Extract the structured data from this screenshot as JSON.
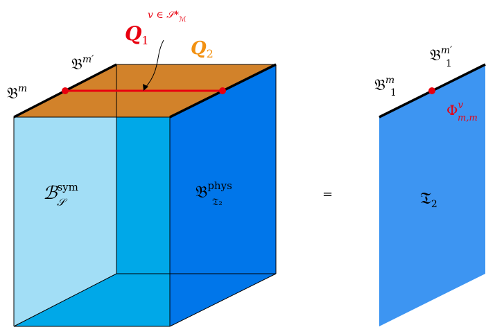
{
  "figure": {
    "left_panel": {
      "label_Bm": "𝔅",
      "label_Bm_sup": "m",
      "label_Bmprime": "𝔅",
      "label_Bmprime_sup": "m′",
      "label_Q1": "Q",
      "label_Q1_sub": "1",
      "label_Q1_sup": "v ∈ 𝒮*",
      "label_Q1_sup_sub": "ℳ",
      "label_Q2": "Q",
      "label_Q2_sub": "2",
      "label_Bsym": "ℬ",
      "label_Bsym_sup": "sym",
      "label_Bsym_sub": "𝒮",
      "label_Bphys": "𝔅",
      "label_Bphys_sup": "phys",
      "label_Bphys_sub": "𝔗₂"
    },
    "equals": "=",
    "right_panel": {
      "label_B1m": "𝔅",
      "label_B1m_sup": "m",
      "label_B1m_sub": "1",
      "label_B1mprime": "𝔅",
      "label_B1mprime_sup": "m′",
      "label_B1mprime_sub": "1",
      "label_Phi": "Φ",
      "label_Phi_sup": "v",
      "label_Phi_sub": "m,m",
      "label_T2": "𝔗",
      "label_T2_sub": "2"
    },
    "colors": {
      "light_face": "#9ddcf5",
      "mid_face": "#00a8e8",
      "dark_face": "#0076ea",
      "top_face": "#e8872a",
      "red": "#e8000f",
      "orange": "#f29111",
      "right_panel": "#3d95f2",
      "black": "#000000"
    }
  }
}
